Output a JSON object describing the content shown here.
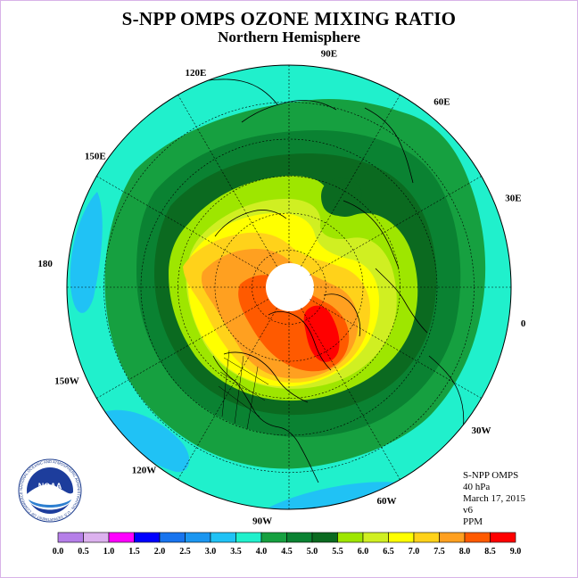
{
  "header": {
    "title": "S-NPP OMPS OZONE MIXING RATIO",
    "subtitle": "Northern Hemisphere"
  },
  "map": {
    "longitude_labels": [
      "90E",
      "60E",
      "30E",
      "0",
      "30W",
      "60W",
      "90W",
      "120W",
      "150W",
      "180",
      "150E",
      "120E"
    ],
    "missing_data_fill": "#ffffff"
  },
  "info": {
    "lines": [
      "S-NPP OMPS",
      "40 hPa",
      "March 17, 2015",
      "v6",
      "PPM"
    ]
  },
  "logo": {
    "text": "NOAA",
    "ring_text": "NATIONAL OCEANIC AND ATMOSPHERIC ADMINISTRATION · U.S. DEPARTMENT OF COMMERCE"
  },
  "colorbar": {
    "labels": [
      "0.0",
      "0.5",
      "1.0",
      "1.5",
      "2.0",
      "2.5",
      "3.0",
      "3.5",
      "4.0",
      "4.5",
      "5.0",
      "5.5",
      "6.0",
      "6.5",
      "7.0",
      "7.5",
      "8.0",
      "8.5",
      "9.0"
    ],
    "colors": [
      "#b57fe8",
      "#dcb1ee",
      "#ff00ff",
      "#0000ff",
      "#1874ee",
      "#1b96f0",
      "#20c2f5",
      "#20f0cc",
      "#16a040",
      "#0a8232",
      "#0b6a20",
      "#9ee600",
      "#d0ef22",
      "#ffff00",
      "#ffd21a",
      "#ffa020",
      "#ff5a00",
      "#ff0000",
      "#8b5a2b"
    ]
  }
}
